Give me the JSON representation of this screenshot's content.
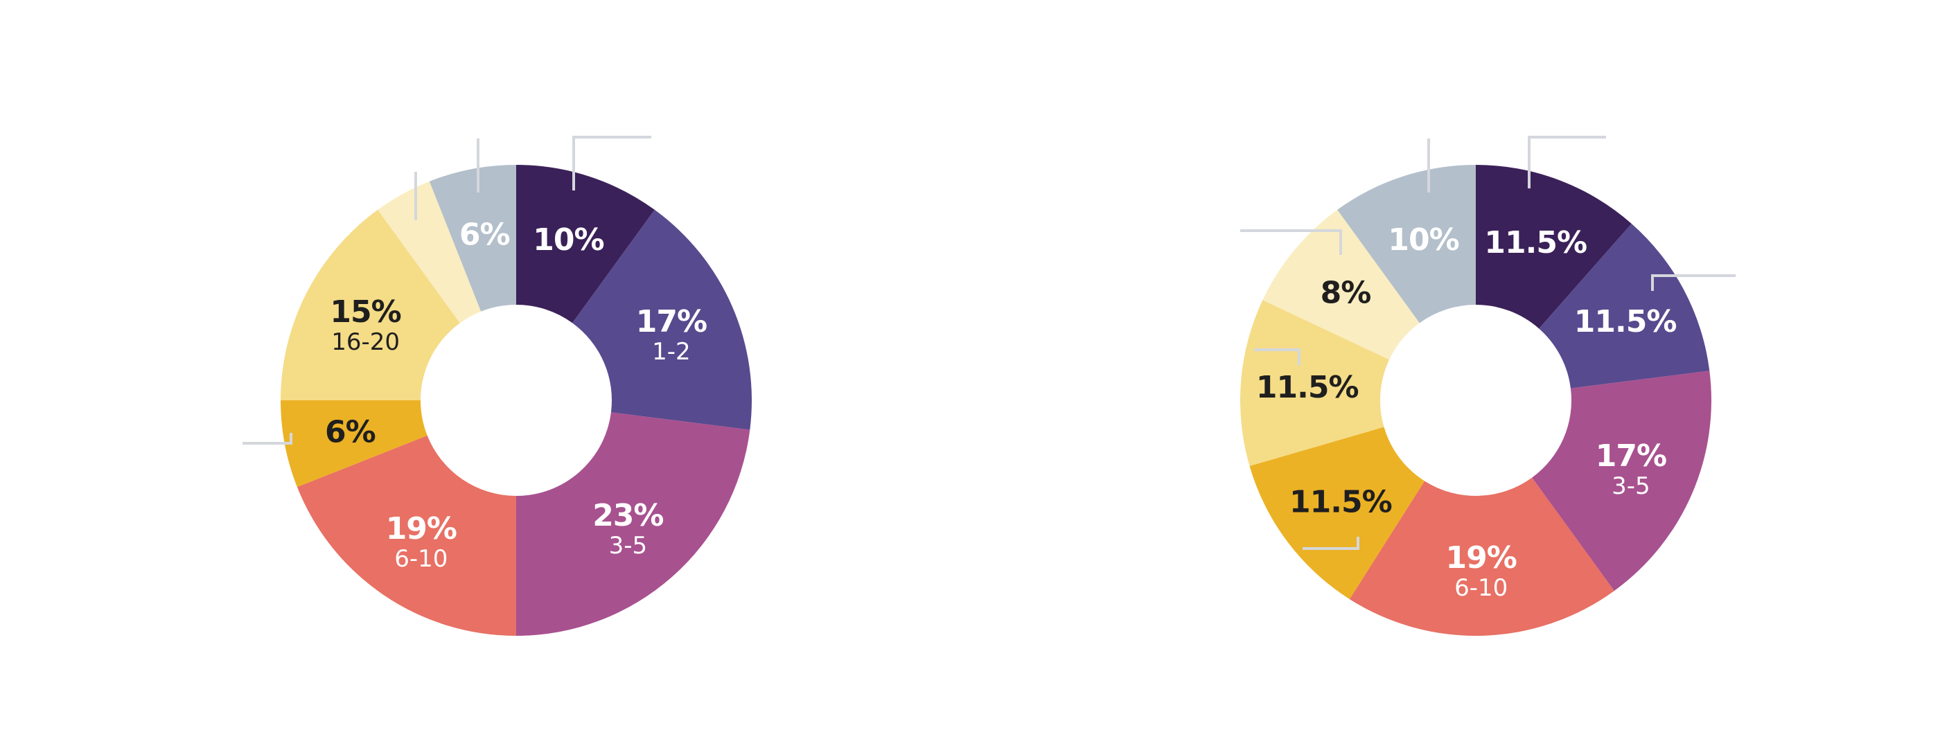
{
  "chart_data": [
    {
      "type": "pie",
      "variant": "donut",
      "title": "",
      "slices": [
        {
          "value": 10,
          "label": "10%",
          "category": "",
          "color": "#3b2159",
          "text_color": "#ffffff"
        },
        {
          "value": 17,
          "label": "17%",
          "category": "1-2",
          "color": "#584a8e",
          "text_color": "#ffffff"
        },
        {
          "value": 23,
          "label": "23%",
          "category": "3-5",
          "color": "#a8518f",
          "text_color": "#ffffff"
        },
        {
          "value": 19,
          "label": "19%",
          "category": "6-10",
          "color": "#e87064",
          "text_color": "#ffffff"
        },
        {
          "value": 6,
          "label": "6%",
          "category": "",
          "color": "#ecb225",
          "text_color": "#1f1f1f"
        },
        {
          "value": 15,
          "label": "15%",
          "category": "16-20",
          "color": "#f5dc87",
          "text_color": "#1f1f1f"
        },
        {
          "value": 4,
          "label": "",
          "category": "",
          "color": "#faedc1",
          "text_color": "#1f1f1f"
        },
        {
          "value": 6,
          "label": "6%",
          "category": "",
          "color": "#b3bfcb",
          "text_color": "#ffffff"
        }
      ]
    },
    {
      "type": "pie",
      "variant": "donut",
      "title": "",
      "slices": [
        {
          "value": 11.5,
          "label": "11.5%",
          "category": "",
          "color": "#3b2159",
          "text_color": "#ffffff"
        },
        {
          "value": 11.5,
          "label": "11.5%",
          "category": "",
          "color": "#584a8e",
          "text_color": "#ffffff"
        },
        {
          "value": 17,
          "label": "17%",
          "category": "3-5",
          "color": "#a8518f",
          "text_color": "#ffffff"
        },
        {
          "value": 19,
          "label": "19%",
          "category": "6-10",
          "color": "#e87064",
          "text_color": "#ffffff"
        },
        {
          "value": 11.5,
          "label": "11.5%",
          "category": "",
          "color": "#ecb225",
          "text_color": "#1f1f1f"
        },
        {
          "value": 11.5,
          "label": "11.5%",
          "category": "",
          "color": "#f5dc87",
          "text_color": "#1f1f1f"
        },
        {
          "value": 8,
          "label": "8%",
          "category": "",
          "color": "#faedc1",
          "text_color": "#1f1f1f"
        },
        {
          "value": 10,
          "label": "10%",
          "category": "",
          "color": "#b3bfcb",
          "text_color": "#ffffff"
        }
      ]
    }
  ]
}
